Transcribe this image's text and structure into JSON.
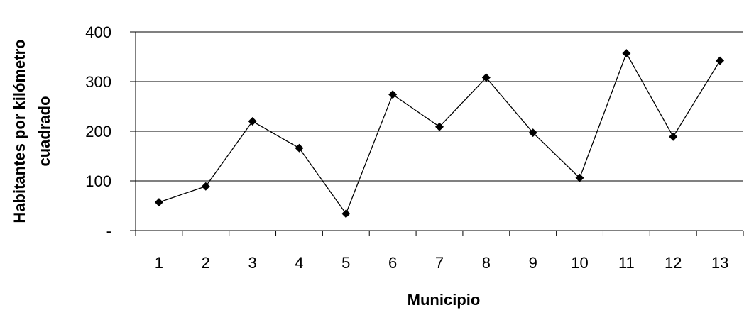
{
  "chart_data": {
    "type": "line",
    "title": "",
    "xlabel": "Municipio",
    "ylabel_lines": [
      "Habitantes por kilómetro",
      "cuadrado"
    ],
    "categories": [
      "1",
      "2",
      "3",
      "4",
      "5",
      "6",
      "7",
      "8",
      "9",
      "10",
      "11",
      "12",
      "13"
    ],
    "series": [
      {
        "values": [
          57,
          89,
          220,
          166,
          34,
          274,
          209,
          308,
          197,
          106,
          357,
          189,
          342
        ]
      }
    ],
    "ylim": [
      0,
      400
    ],
    "yticks": [
      0,
      100,
      200,
      300,
      400
    ],
    "ytick_labels": [
      "-",
      "100",
      "200",
      "300",
      "400"
    ],
    "grid": true,
    "legend": "none",
    "colors": {
      "line": "#000000",
      "marker": "#000000",
      "grid": "#000000"
    }
  }
}
